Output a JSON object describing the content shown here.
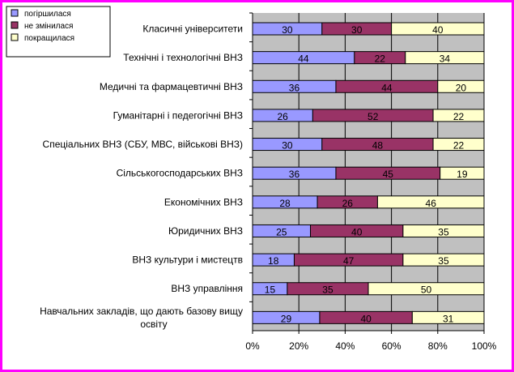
{
  "colors": {
    "border": "#ff00ff",
    "plot_bg": "#c0c0c0",
    "gridline": "#000000"
  },
  "chart_data": {
    "type": "bar",
    "orientation": "horizontal",
    "stacked": "percent",
    "title": "",
    "xlabel": "",
    "ylabel": "",
    "xlim": [
      0,
      100
    ],
    "x_ticks": [
      "0%",
      "20%",
      "40%",
      "60%",
      "80%",
      "100%"
    ],
    "grid": "vertical",
    "legend_position": "top-left",
    "categories": [
      "Класичні університети",
      "Технічні і технологічні ВНЗ",
      "Медичні та фармацевтичні ВНЗ",
      "Гуманітарні і педегогічні ВНЗ",
      "Спеціальних ВНЗ (СБУ, МВС, військові ВНЗ)",
      "Сільськогосподарських ВНЗ",
      "Економічних ВНЗ",
      "Юридичних ВНЗ",
      "ВНЗ культури і мистецтв",
      "ВНЗ управління",
      "Навчальних закладів, що дають базову вищу освіту"
    ],
    "series": [
      {
        "name": "погіршилася",
        "color": "#9999ff",
        "values": [
          30,
          44,
          36,
          26,
          30,
          36,
          28,
          25,
          18,
          15,
          29
        ]
      },
      {
        "name": "не змінилася",
        "color": "#993366",
        "values": [
          30,
          22,
          44,
          52,
          48,
          45,
          26,
          40,
          47,
          35,
          40
        ]
      },
      {
        "name": "покращилася",
        "color": "#ffffcc",
        "values": [
          40,
          34,
          20,
          22,
          22,
          19,
          46,
          35,
          35,
          50,
          31
        ]
      }
    ]
  }
}
